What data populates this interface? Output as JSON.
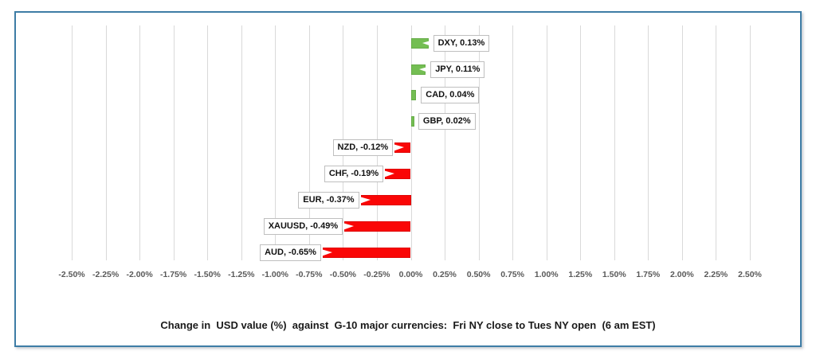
{
  "window": {
    "background_color": "#ffffff",
    "frame_border_color": "#3E7DA6"
  },
  "chart_data": {
    "type": "bar",
    "orientation": "horizontal",
    "title": "Change in  USD value (%)  against  G-10 major currencies:  Fri NY close to Tues NY open  (6 am EST)",
    "categories": [
      "DXY",
      "JPY",
      "CAD",
      "GBP",
      "NZD",
      "CHF",
      "EUR",
      "XAUUSD",
      "AUD"
    ],
    "values": [
      0.13,
      0.11,
      0.04,
      0.02,
      -0.12,
      -0.19,
      -0.37,
      -0.49,
      -0.65
    ],
    "data_labels": [
      "DXY, 0.13%",
      "JPY, 0.11%",
      "CAD, 0.04%",
      "GBP, 0.02%",
      "NZD, -0.12%",
      "CHF, -0.19%",
      "EUR, -0.37%",
      "XAUUSD, -0.49%",
      "AUD, -0.65%"
    ],
    "xlim": [
      -2.5,
      2.5
    ],
    "xtick_step": 0.25,
    "xtick_labels": [
      "-2.50%",
      "-2.25%",
      "-2.00%",
      "-1.75%",
      "-1.50%",
      "-1.25%",
      "-1.00%",
      "-0.75%",
      "-0.50%",
      "-0.25%",
      "0.00%",
      "0.25%",
      "0.50%",
      "0.75%",
      "1.00%",
      "1.25%",
      "1.50%",
      "1.75%",
      "2.00%",
      "2.25%",
      "2.50%"
    ],
    "grid": "vertical-on",
    "legend": "none",
    "colors": {
      "positive_bar": "#74BE53",
      "negative_bar": "#FA0606",
      "gridline": "#D9D9D9",
      "tick_text": "#595959",
      "data_label_border": "#BFBFBF",
      "data_label_text": "#111111",
      "title_text": "#1a1a1a"
    }
  }
}
